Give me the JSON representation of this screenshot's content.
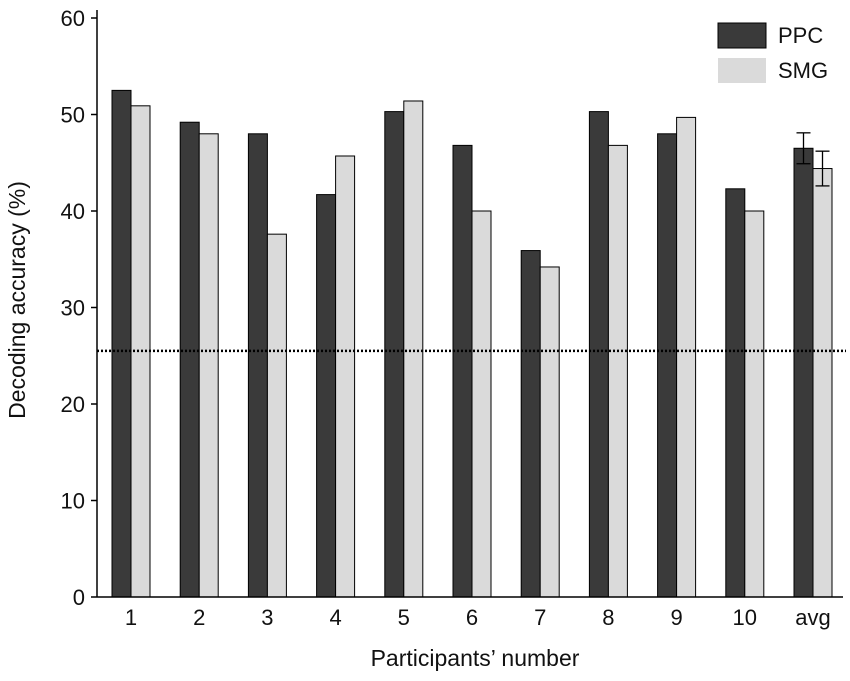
{
  "chart_data": {
    "type": "bar",
    "xlabel": "Participants’ number",
    "ylabel": "Decoding accuracy (%)",
    "ylim": [
      0,
      60
    ],
    "yticks": [
      0,
      10,
      20,
      30,
      40,
      50,
      60
    ],
    "categories": [
      "1",
      "2",
      "3",
      "4",
      "5",
      "6",
      "7",
      "8",
      "9",
      "10",
      "avg"
    ],
    "series": [
      {
        "name": "PPC",
        "color": "#3a3a3a",
        "values": [
          52.5,
          49.2,
          48.0,
          41.7,
          50.3,
          46.8,
          35.9,
          50.3,
          48.0,
          42.3,
          46.5
        ],
        "error": [
          null,
          null,
          null,
          null,
          null,
          null,
          null,
          null,
          null,
          null,
          1.6
        ]
      },
      {
        "name": "SMG",
        "color": "#dadada",
        "values": [
          50.9,
          48.0,
          37.6,
          45.7,
          51.4,
          40.0,
          34.2,
          46.8,
          49.7,
          40.0,
          44.4
        ],
        "error": [
          null,
          null,
          null,
          null,
          null,
          null,
          null,
          null,
          null,
          null,
          1.8
        ]
      }
    ],
    "reference_line": {
      "value": 25.5,
      "style": "dotted"
    },
    "grid": false,
    "legend_position": "top-right"
  }
}
